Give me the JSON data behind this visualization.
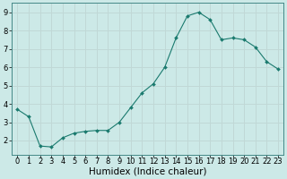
{
  "x": [
    0,
    1,
    2,
    3,
    4,
    5,
    6,
    7,
    8,
    9,
    10,
    11,
    12,
    13,
    14,
    15,
    16,
    17,
    18,
    19,
    20,
    21,
    22,
    23
  ],
  "y": [
    3.7,
    3.3,
    1.7,
    1.65,
    2.15,
    2.4,
    2.5,
    2.55,
    2.55,
    3.0,
    3.8,
    4.6,
    5.1,
    6.0,
    7.6,
    8.8,
    9.0,
    8.6,
    7.5,
    7.6,
    7.5,
    7.1,
    6.3,
    5.9
  ],
  "line_color": "#1a7a6e",
  "marker": "D",
  "markersize": 2.0,
  "linewidth": 0.8,
  "bg_color": "#cce9e7",
  "grid_color": "#c0d8d6",
  "xlabel": "Humidex (Indice chaleur)",
  "xlabel_fontsize": 7.5,
  "tick_fontsize": 6.0,
  "xlim": [
    -0.5,
    23.5
  ],
  "ylim": [
    1.2,
    9.5
  ],
  "yticks": [
    2,
    3,
    4,
    5,
    6,
    7,
    8,
    9
  ],
  "xticks": [
    0,
    1,
    2,
    3,
    4,
    5,
    6,
    7,
    8,
    9,
    10,
    11,
    12,
    13,
    14,
    15,
    16,
    17,
    18,
    19,
    20,
    21,
    22,
    23
  ]
}
